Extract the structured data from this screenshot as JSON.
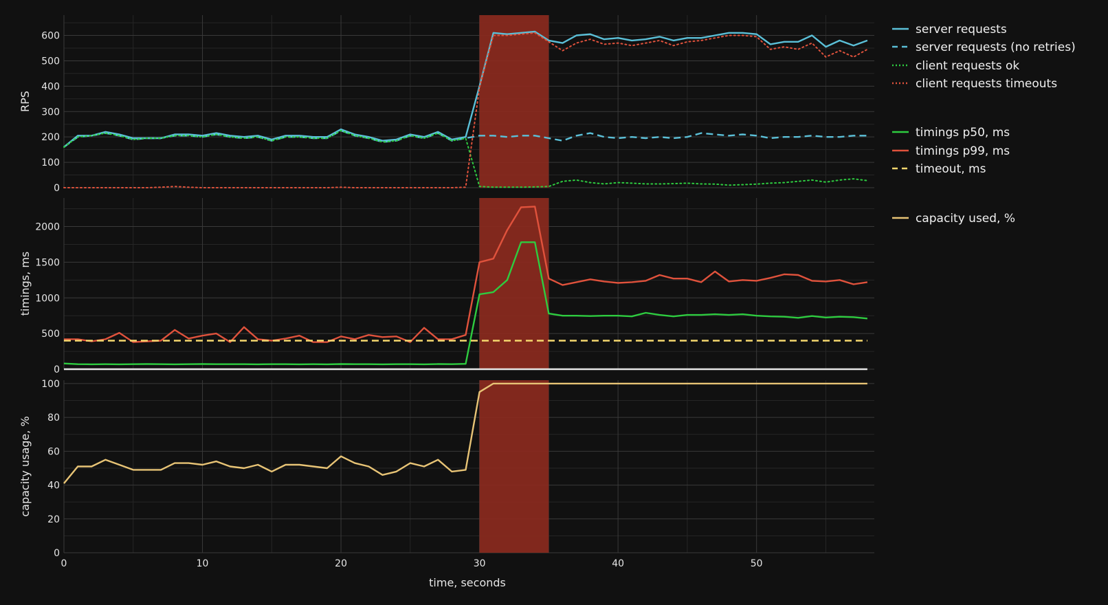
{
  "chart_data": {
    "type": "line",
    "x_axis": {
      "label": "time, seconds",
      "range": [
        0,
        58.5
      ],
      "ticks": [
        0,
        10,
        20,
        30,
        40,
        50
      ]
    },
    "highlight": {
      "x_start": 30,
      "x_end": 35,
      "color": "#8b2a1e"
    },
    "panels": [
      {
        "id": "rps",
        "ylabel": "RPS",
        "ylim": [
          0,
          680
        ],
        "yticks": [
          0,
          100,
          200,
          300,
          400,
          500,
          600
        ],
        "series": [
          {
            "name": "server requests",
            "color": "#5bc0d8",
            "dash": "solid",
            "x": [
              0,
              1,
              2,
              3,
              4,
              5,
              6,
              7,
              8,
              9,
              10,
              11,
              12,
              13,
              14,
              15,
              16,
              17,
              18,
              19,
              20,
              21,
              22,
              23,
              24,
              25,
              26,
              27,
              28,
              29,
              30,
              31,
              32,
              33,
              34,
              35,
              36,
              37,
              38,
              39,
              40,
              41,
              42,
              43,
              44,
              45,
              46,
              47,
              48,
              49,
              50,
              51,
              52,
              53,
              54,
              55,
              56,
              57,
              58
            ],
            "y": [
              160,
              205,
              205,
              220,
              210,
              195,
              195,
              195,
              210,
              210,
              205,
              215,
              205,
              200,
              205,
              190,
              205,
              205,
              200,
              200,
              230,
              210,
              200,
              185,
              190,
              210,
              200,
              220,
              190,
              200,
              400,
              610,
              605,
              610,
              615,
              580,
              570,
              600,
              605,
              585,
              590,
              580,
              585,
              595,
              580,
              590,
              590,
              600,
              610,
              610,
              605,
              565,
              575,
              575,
              600,
              555,
              580,
              560,
              580
            ]
          },
          {
            "name": "server requests (no retries)",
            "color": "#5bc0d8",
            "dash": "dashed",
            "x": [
              0,
              1,
              2,
              3,
              4,
              5,
              6,
              7,
              8,
              9,
              10,
              11,
              12,
              13,
              14,
              15,
              16,
              17,
              18,
              19,
              20,
              21,
              22,
              23,
              24,
              25,
              26,
              27,
              28,
              29,
              30,
              31,
              32,
              33,
              34,
              35,
              36,
              37,
              38,
              39,
              40,
              41,
              42,
              43,
              44,
              45,
              46,
              47,
              48,
              49,
              50,
              51,
              52,
              53,
              54,
              55,
              56,
              57,
              58
            ],
            "y": [
              160,
              200,
              205,
              215,
              205,
              190,
              195,
              195,
              205,
              205,
              200,
              210,
              200,
              195,
              200,
              185,
              200,
              200,
              195,
              195,
              225,
              205,
              195,
              180,
              185,
              205,
              195,
              215,
              185,
              195,
              205,
              205,
              200,
              205,
              205,
              195,
              185,
              205,
              215,
              200,
              195,
              200,
              195,
              200,
              195,
              200,
              215,
              210,
              205,
              210,
              205,
              195,
              200,
              200,
              205,
              200,
              200,
              205,
              205
            ]
          },
          {
            "name": "client requests ok",
            "color": "#2ecc40",
            "dash": "dotted",
            "x": [
              0,
              1,
              2,
              3,
              4,
              5,
              6,
              7,
              8,
              9,
              10,
              11,
              12,
              13,
              14,
              15,
              16,
              17,
              18,
              19,
              20,
              21,
              22,
              23,
              24,
              25,
              26,
              27,
              28,
              29,
              30,
              31,
              32,
              33,
              34,
              35,
              36,
              37,
              38,
              39,
              40,
              41,
              42,
              43,
              44,
              45,
              46,
              47,
              48,
              49,
              50,
              51,
              52,
              53,
              54,
              55,
              56,
              57,
              58
            ],
            "y": [
              160,
              200,
              205,
              215,
              205,
              190,
              195,
              195,
              205,
              205,
              200,
              210,
              200,
              195,
              200,
              185,
              200,
              200,
              195,
              195,
              225,
              205,
              195,
              180,
              185,
              205,
              195,
              215,
              185,
              195,
              5,
              2,
              2,
              2,
              3,
              5,
              25,
              30,
              20,
              15,
              20,
              18,
              15,
              15,
              16,
              18,
              15,
              14,
              10,
              12,
              14,
              18,
              20,
              25,
              30,
              22,
              30,
              35,
              28
            ]
          },
          {
            "name": "client requests timeouts",
            "color": "#e0523c",
            "dash": "dotted",
            "x": [
              0,
              1,
              2,
              3,
              4,
              5,
              6,
              7,
              8,
              9,
              10,
              11,
              12,
              13,
              14,
              15,
              16,
              17,
              18,
              19,
              20,
              21,
              22,
              23,
              24,
              25,
              26,
              27,
              28,
              29,
              30,
              31,
              32,
              33,
              34,
              35,
              36,
              37,
              38,
              39,
              40,
              41,
              42,
              43,
              44,
              45,
              46,
              47,
              48,
              49,
              50,
              51,
              52,
              53,
              54,
              55,
              56,
              57,
              58
            ],
            "y": [
              0,
              0,
              0,
              0,
              0,
              0,
              0,
              2,
              5,
              2,
              0,
              0,
              0,
              0,
              0,
              0,
              0,
              0,
              0,
              0,
              2,
              0,
              0,
              0,
              0,
              0,
              0,
              0,
              0,
              2,
              395,
              600,
              600,
              605,
              610,
              575,
              540,
              570,
              585,
              565,
              570,
              560,
              570,
              580,
              560,
              575,
              580,
              590,
              600,
              600,
              595,
              545,
              555,
              545,
              570,
              515,
              540,
              515,
              545
            ]
          }
        ]
      },
      {
        "id": "timings",
        "ylabel": "timings, ms",
        "ylim": [
          0,
          2400
        ],
        "yticks": [
          0,
          500,
          1000,
          1500,
          2000
        ],
        "series": [
          {
            "name": "timings p50, ms",
            "color": "#2ecc40",
            "dash": "solid",
            "x": [
              0,
              1,
              2,
              3,
              4,
              5,
              6,
              7,
              8,
              9,
              10,
              11,
              12,
              13,
              14,
              15,
              16,
              17,
              18,
              19,
              20,
              21,
              22,
              23,
              24,
              25,
              26,
              27,
              28,
              29,
              30,
              31,
              32,
              33,
              34,
              35,
              36,
              37,
              38,
              39,
              40,
              41,
              42,
              43,
              44,
              45,
              46,
              47,
              48,
              49,
              50,
              51,
              52,
              53,
              54,
              55,
              56,
              57,
              58
            ],
            "y": [
              80,
              70,
              68,
              70,
              68,
              70,
              72,
              70,
              68,
              70,
              72,
              70,
              70,
              70,
              68,
              70,
              70,
              68,
              70,
              68,
              72,
              70,
              70,
              68,
              70,
              70,
              68,
              72,
              70,
              75,
              1050,
              1080,
              1250,
              1780,
              1780,
              780,
              750,
              750,
              745,
              750,
              750,
              740,
              790,
              760,
              740,
              760,
              760,
              770,
              760,
              770,
              750,
              740,
              735,
              720,
              745,
              725,
              735,
              730,
              710
            ]
          },
          {
            "name": "timings p99, ms",
            "color": "#e0523c",
            "dash": "solid",
            "x": [
              0,
              1,
              2,
              3,
              4,
              5,
              6,
              7,
              8,
              9,
              10,
              11,
              12,
              13,
              14,
              15,
              16,
              17,
              18,
              19,
              20,
              21,
              22,
              23,
              24,
              25,
              26,
              27,
              28,
              29,
              30,
              31,
              32,
              33,
              34,
              35,
              36,
              37,
              38,
              39,
              40,
              41,
              42,
              43,
              44,
              45,
              46,
              47,
              48,
              49,
              50,
              51,
              52,
              53,
              54,
              55,
              56,
              57,
              58
            ],
            "y": [
              420,
              420,
              390,
              420,
              510,
              380,
              390,
              400,
              550,
              430,
              470,
              500,
              380,
              590,
              420,
              400,
              430,
              470,
              380,
              380,
              460,
              420,
              480,
              450,
              460,
              380,
              580,
              420,
              420,
              480,
              1500,
              1550,
              1950,
              2270,
              2280,
              1270,
              1180,
              1220,
              1260,
              1230,
              1210,
              1220,
              1240,
              1320,
              1270,
              1270,
              1220,
              1370,
              1230,
              1250,
              1240,
              1280,
              1330,
              1320,
              1240,
              1230,
              1250,
              1190,
              1220
            ]
          },
          {
            "name": "timeout, ms",
            "color": "#f5d76e",
            "dash": "dashed",
            "x": [
              0,
              58
            ],
            "y": [
              400,
              400
            ]
          },
          {
            "name": "",
            "color": "#e6e6e6",
            "dash": "solid",
            "x": [
              0,
              58
            ],
            "y": [
              0,
              0
            ]
          }
        ]
      },
      {
        "id": "capacity",
        "ylabel": "capacity usage, %",
        "ylim": [
          0,
          102
        ],
        "yticks": [
          0,
          20,
          40,
          60,
          80,
          100
        ],
        "series": [
          {
            "name": "capacity used, %",
            "color": "#e8c476",
            "dash": "solid",
            "x": [
              0,
              1,
              2,
              3,
              4,
              5,
              6,
              7,
              8,
              9,
              10,
              11,
              12,
              13,
              14,
              15,
              16,
              17,
              18,
              19,
              20,
              21,
              22,
              23,
              24,
              25,
              26,
              27,
              28,
              29,
              30,
              31,
              32,
              33,
              34,
              35,
              36,
              37,
              38,
              39,
              40,
              41,
              42,
              43,
              44,
              45,
              46,
              47,
              48,
              49,
              50,
              51,
              52,
              53,
              54,
              55,
              56,
              57,
              58
            ],
            "y": [
              41,
              51,
              51,
              55,
              52,
              49,
              49,
              49,
              53,
              53,
              52,
              54,
              51,
              50,
              52,
              48,
              52,
              52,
              51,
              50,
              57,
              53,
              51,
              46,
              48,
              53,
              51,
              55,
              48,
              49,
              95,
              100,
              100,
              100,
              100,
              100,
              100,
              100,
              100,
              100,
              100,
              100,
              100,
              100,
              100,
              100,
              100,
              100,
              100,
              100,
              100,
              100,
              100,
              100,
              100,
              100,
              100,
              100,
              100
            ]
          }
        ]
      }
    ],
    "legend": {
      "placement": "right",
      "groups": [
        {
          "panel": "rps",
          "items": [
            0,
            1,
            2,
            3
          ]
        },
        {
          "panel": "timings",
          "items": [
            0,
            1,
            2
          ]
        },
        {
          "panel": "capacity",
          "items": [
            0
          ]
        }
      ]
    }
  }
}
